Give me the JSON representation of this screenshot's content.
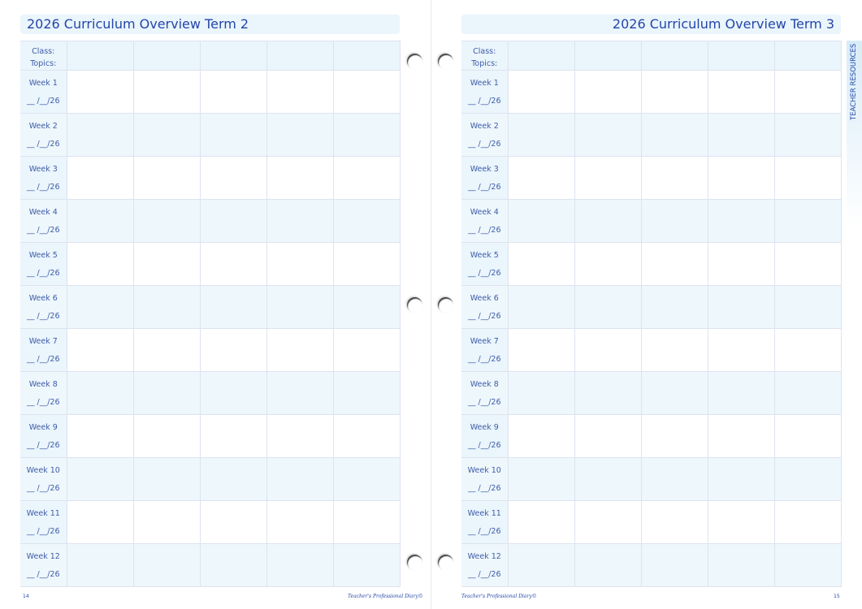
{
  "left_page": {
    "title": "2026 Curriculum Overview Term 2",
    "page_number": "14",
    "footer": "Teacher's Professional Diary©"
  },
  "right_page": {
    "title": "2026 Curriculum Overview Term 3",
    "page_number": "15",
    "footer": "Teacher's Professional Diary©"
  },
  "header_labels": {
    "class": "Class:",
    "topics": "Topics:"
  },
  "weeks": [
    "Week 1",
    "Week 2",
    "Week 3",
    "Week 4",
    "Week 5",
    "Week 6",
    "Week 7",
    "Week 8",
    "Week 9",
    "Week 10",
    "Week 11",
    "Week 12"
  ],
  "date_placeholder": "__ /__/26",
  "side_tab": "TEACHER RESOURCES",
  "colors": {
    "accent": "#2446a8",
    "row_fill": "#eef7fc",
    "grid": "#dde3ef"
  }
}
